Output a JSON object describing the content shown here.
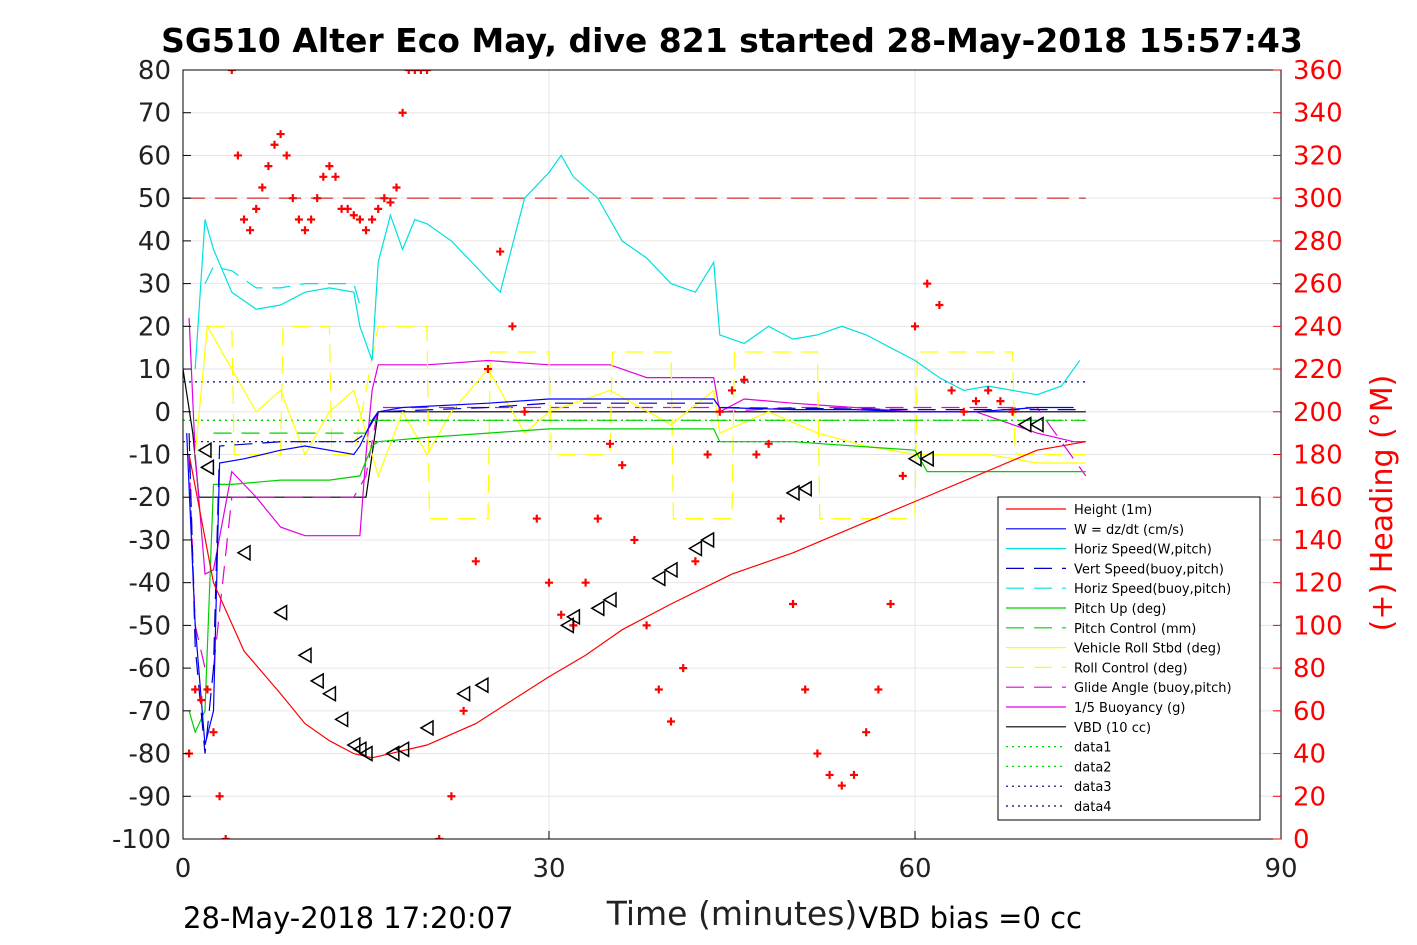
{
  "chart_data": {
    "type": "line",
    "title": "SG510 Alter Eco May, dive 821 started 28-May-2018 15:57:43",
    "xlabel": "Time (minutes)",
    "ylabel_right": "(+) Heading (°M)",
    "xlim": [
      0,
      90
    ],
    "ylim": [
      -100,
      80
    ],
    "ylim_right": [
      0,
      360
    ],
    "x_ticks": [
      "0",
      "30",
      "60",
      "90"
    ],
    "y_ticks": [
      "80",
      "70",
      "60",
      "50",
      "40",
      "30",
      "20",
      "10",
      "0",
      "-10",
      "-20",
      "-30",
      "-40",
      "-50",
      "-60",
      "-70",
      "-80",
      "-90",
      "-100"
    ],
    "y_ticks_right": [
      "360",
      "340",
      "320",
      "300",
      "280",
      "260",
      "240",
      "220",
      "200",
      "180",
      "160",
      "140",
      "120",
      "100",
      "80",
      "60",
      "40",
      "20",
      "0"
    ],
    "grid": true,
    "legend_position": "lower-right",
    "footer_left": "28-May-2018 17:20:07",
    "footer_right": "VBD bias =0 cc",
    "series": [
      {
        "name": "Height (1m)",
        "color": "#ff0000",
        "style": "solid",
        "x": [
          0.5,
          1.5,
          2.5,
          5,
          8,
          10,
          12,
          14,
          15.5,
          17,
          20,
          24,
          30,
          33,
          36,
          40,
          45,
          50,
          55,
          60,
          65,
          70,
          74
        ],
        "y": [
          -10,
          -25,
          -40,
          -56,
          -66,
          -73,
          -77,
          -80,
          -81,
          -80,
          -78,
          -73,
          -62,
          -57,
          -51,
          -45,
          -38,
          -33,
          -27,
          -21,
          -15,
          -9,
          -7
        ]
      },
      {
        "name": "W = dz/dt (cm/s)",
        "color": "#0000ff",
        "style": "solid",
        "x": [
          0.3,
          1,
          1.8,
          2.5,
          3,
          5,
          8,
          10,
          12,
          14,
          14.5,
          15.5,
          16,
          18,
          25,
          30,
          35,
          40,
          43.5,
          44,
          50,
          55,
          60,
          65,
          70,
          73
        ],
        "y": [
          -5,
          -50,
          -78,
          -70,
          -12,
          -11,
          -9,
          -8,
          -9,
          -10,
          -8,
          -2,
          0,
          1,
          2,
          3,
          3,
          3,
          3,
          1,
          0.5,
          0.5,
          0,
          0,
          1,
          1
        ]
      },
      {
        "name": "Horiz Speed(W,pitch)",
        "color": "#00e0e0",
        "style": "solid",
        "x": [
          1,
          1.8,
          2.5,
          4,
          6,
          8,
          10,
          12,
          14,
          14.5,
          15.5,
          16,
          17,
          18,
          19,
          20,
          22,
          24,
          26,
          28,
          30,
          31,
          32,
          34,
          36,
          38,
          40,
          42,
          43.5,
          44,
          46,
          48,
          50,
          52,
          54,
          56,
          58,
          60,
          62,
          64,
          66,
          68,
          70,
          72,
          73.5
        ],
        "y": [
          10,
          45,
          38,
          28,
          24,
          25,
          28,
          29,
          28,
          20,
          12,
          35,
          46,
          38,
          45,
          44,
          40,
          34,
          28,
          50,
          56,
          60,
          55,
          50,
          40,
          36,
          30,
          28,
          35,
          18,
          16,
          20,
          17,
          18,
          20,
          18,
          15,
          12,
          8,
          5,
          6,
          5,
          4,
          6,
          12
        ]
      },
      {
        "name": "Vert Speed(buoy,pitch)",
        "color": "#0000c0",
        "style": "dashed",
        "x": [
          0.5,
          1,
          1.8,
          2.5,
          3,
          8,
          14,
          15,
          16,
          25,
          30,
          40,
          43.5,
          44,
          60,
          74
        ],
        "y": [
          -5,
          -55,
          -80,
          -60,
          -8,
          -7,
          -7,
          -5,
          0,
          1,
          2,
          2,
          2,
          1,
          0.5,
          0.5
        ]
      },
      {
        "name": "Horiz Speed(buoy,pitch)",
        "color": "#00e0e0",
        "style": "dashed",
        "x": [
          1.8,
          2.5,
          4,
          6,
          8,
          10,
          12,
          14,
          14.5
        ],
        "y": [
          30,
          34,
          33,
          29,
          29,
          30,
          30,
          30,
          25
        ]
      },
      {
        "name": "Pitch Up (deg)",
        "color": "#00d000",
        "style": "solid",
        "x": [
          0.5,
          1,
          1.8,
          2.5,
          4,
          8,
          12,
          14.5,
          15.5,
          16,
          20,
          25,
          30,
          35,
          40,
          43.5,
          44,
          50,
          55,
          60,
          61,
          65,
          70,
          74
        ],
        "y": [
          -70,
          -75,
          -70,
          -17,
          -17,
          -16,
          -16,
          -15,
          -8,
          -7,
          -6,
          -5,
          -4,
          -4,
          -4,
          -4,
          -7,
          -7,
          -8,
          -9,
          -14,
          -14,
          -14,
          -14
        ]
      },
      {
        "name": "Pitch Control (mm)",
        "color": "#00d000",
        "style": "dashed",
        "x": [
          2.5,
          15,
          15.5,
          74
        ],
        "y": [
          -5,
          -5,
          -2,
          -2
        ]
      },
      {
        "name": "Vehicle Roll Stbd (deg)",
        "color": "#ffff00",
        "style": "solid",
        "x": [
          1,
          2,
          3,
          4,
          6,
          8,
          10,
          12,
          14,
          16,
          18,
          20,
          22,
          25,
          28,
          30,
          35,
          40,
          43.5,
          44,
          48,
          52,
          56,
          60,
          62,
          66,
          70,
          74
        ],
        "y": [
          -10,
          20,
          15,
          10,
          0,
          5,
          -10,
          0,
          5,
          -15,
          0,
          -10,
          0,
          10,
          -5,
          0,
          5,
          -3,
          5,
          -5,
          0,
          -5,
          -8,
          -10,
          -10,
          -10,
          -12,
          -12
        ]
      },
      {
        "name": "Roll Control (deg)",
        "color": "#ffff00",
        "style": "dashed",
        "x": [
          2,
          4,
          4.2,
          8,
          8.2,
          12,
          12.2,
          14,
          16,
          20,
          20.2,
          25,
          25.2,
          30,
          30.2,
          35,
          35.2,
          40,
          40.2,
          45,
          45.2,
          52,
          52.2,
          60,
          60.2,
          68,
          68.2,
          74
        ],
        "y": [
          20,
          20,
          -10,
          -10,
          20,
          20,
          -10,
          -10,
          20,
          20,
          -25,
          -25,
          14,
          14,
          -10,
          -10,
          14,
          14,
          -25,
          -25,
          14,
          14,
          -25,
          -25,
          14,
          14,
          -10,
          -10
        ]
      },
      {
        "name": "Glide Angle (buoy,pitch)",
        "color": "#e000e0",
        "style": "dashed",
        "x": [
          0.5,
          1,
          1.8,
          2.5,
          4,
          8,
          14,
          15,
          16,
          25,
          30,
          40,
          43.5,
          44,
          50,
          60,
          65,
          70,
          74
        ],
        "y": [
          -10,
          -50,
          -60,
          -60,
          -20,
          -20,
          -20,
          -15,
          1,
          1,
          1,
          1,
          1,
          0,
          1,
          1,
          1,
          1,
          -15
        ]
      },
      {
        "name": "1/5 Buoyancy (g)",
        "color": "#e000e0",
        "style": "solid",
        "x": [
          0.5,
          1,
          1.8,
          2.5,
          4,
          6,
          8,
          10,
          12,
          14.5,
          15,
          15.5,
          16,
          20,
          25,
          30,
          35,
          38,
          40,
          43.5,
          44,
          46,
          50,
          55,
          60,
          65,
          70,
          73,
          74
        ],
        "y": [
          22,
          -10,
          -38,
          -37,
          -14,
          -20,
          -27,
          -29,
          -29,
          -29,
          -10,
          5,
          11,
          11,
          12,
          11,
          11,
          8,
          8,
          8,
          0,
          3,
          2,
          1,
          0,
          0,
          -5,
          -7,
          -7
        ]
      },
      {
        "name": "VBD (10 cc)",
        "color": "#000000",
        "style": "solid",
        "x": [
          0,
          0.8,
          1.3,
          15,
          15.5,
          16,
          74
        ],
        "y": [
          10,
          -5,
          -20,
          -20,
          -10,
          0,
          0
        ]
      },
      {
        "name": "data1",
        "color": "#00d000",
        "style": "dotted",
        "x": [
          0,
          74
        ],
        "y": [
          -2,
          -2
        ]
      },
      {
        "name": "data2",
        "color": "#00d000",
        "style": "dotted",
        "x": [
          0,
          74
        ],
        "y": [
          -2,
          -2
        ]
      },
      {
        "name": "data3",
        "color": "#000080",
        "style": "dotted",
        "x": [
          0,
          74
        ],
        "y": [
          7,
          7
        ]
      },
      {
        "name": "data4",
        "color": "#000080",
        "style": "dotted",
        "x": [
          0,
          74
        ],
        "y": [
          -7,
          -7
        ]
      }
    ],
    "heading_target": {
      "color": "#cc0000",
      "style": "dashed",
      "x": [
        0,
        74
      ],
      "y": [
        300,
        300
      ]
    },
    "heading_points": {
      "color": "#ff0000",
      "marker": "+",
      "x": [
        0.5,
        1.0,
        1.5,
        2.0,
        2.5,
        3.0,
        3.5,
        4.0,
        4.5,
        5.0,
        5.5,
        6.0,
        6.5,
        7.0,
        7.5,
        8.0,
        8.5,
        9.0,
        9.5,
        10.0,
        10.5,
        11.0,
        11.5,
        12.0,
        12.5,
        13.0,
        13.5,
        14.0,
        14.5,
        15.0,
        15.5,
        16.0,
        16.5,
        17.0,
        17.5,
        18.0,
        18.5,
        19.0,
        19.5,
        20.0,
        21.0,
        22.0,
        23.0,
        24.0,
        25.0,
        26.0,
        27.0,
        28.0,
        29.0,
        30.0,
        31.0,
        32.0,
        33.0,
        34.0,
        35.0,
        36.0,
        37.0,
        38.0,
        39.0,
        40.0,
        41.0,
        42.0,
        43.0,
        44.0,
        45.0,
        46.0,
        47.0,
        48.0,
        49.0,
        50.0,
        51.0,
        52.0,
        53.0,
        54.0,
        55.0,
        56.0,
        57.0,
        58.0,
        59.0,
        60.0,
        61.0,
        62.0,
        63.0,
        64.0,
        65.0,
        66.0,
        67.0,
        68.0
      ],
      "y": [
        40,
        70,
        65,
        70,
        50,
        20,
        0,
        360,
        320,
        290,
        285,
        295,
        305,
        315,
        325,
        330,
        320,
        300,
        290,
        285,
        290,
        300,
        310,
        315,
        310,
        295,
        295,
        292,
        290,
        285,
        290,
        295,
        300,
        298,
        305,
        340,
        360,
        360,
        360,
        360,
        0,
        20,
        60,
        130,
        220,
        275,
        240,
        200,
        150,
        120,
        105,
        100,
        120,
        150,
        185,
        175,
        140,
        100,
        70,
        55,
        80,
        130,
        180,
        200,
        210,
        215,
        180,
        185,
        150,
        110,
        70,
        40,
        30,
        25,
        30,
        50,
        70,
        110,
        170,
        240,
        260,
        250,
        210,
        200,
        205,
        210,
        205,
        200
      ]
    },
    "triangle_markers": {
      "color": "#000000",
      "marker": "triangle",
      "x": [
        1.8,
        2,
        5,
        8,
        10,
        11,
        12,
        13,
        14,
        14.5,
        15,
        17.2,
        18,
        20,
        23,
        24.5,
        31.5,
        32,
        34,
        35,
        39,
        40,
        42,
        43,
        50,
        51,
        60,
        61,
        69,
        70
      ],
      "y": [
        -9,
        -13,
        -33,
        -47,
        -57,
        -63,
        -66,
        -72,
        -78,
        -79,
        -80,
        -80,
        -79,
        -74,
        -66,
        -64,
        -50,
        -48,
        -46,
        -44,
        -39,
        -37,
        -32,
        -30,
        -19,
        -18,
        -11,
        -11,
        -3,
        -3
      ]
    }
  }
}
